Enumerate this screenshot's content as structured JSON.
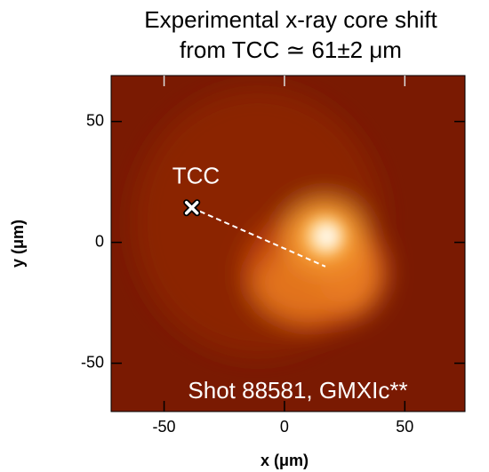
{
  "chart_data": {
    "type": "image",
    "title": [
      "Experimental x-ray core shift",
      "from TCC ≃ 61±2 μm"
    ],
    "xlabel": "x (μm)",
    "ylabel": "y (μm)",
    "xlim": [
      -72,
      75
    ],
    "ylim": [
      -70,
      69
    ],
    "xticks": [
      -50,
      0,
      50
    ],
    "yticks": [
      -50,
      0,
      50
    ],
    "tcc": {
      "label": "TCC",
      "x": -38.5,
      "y": 14.3
    },
    "shift_line": {
      "x": [
        -38.5,
        17
      ],
      "y": [
        14.3,
        -10
      ]
    },
    "annotation": "Shot 88581, GMXIc**",
    "background": "#7a1a02"
  }
}
